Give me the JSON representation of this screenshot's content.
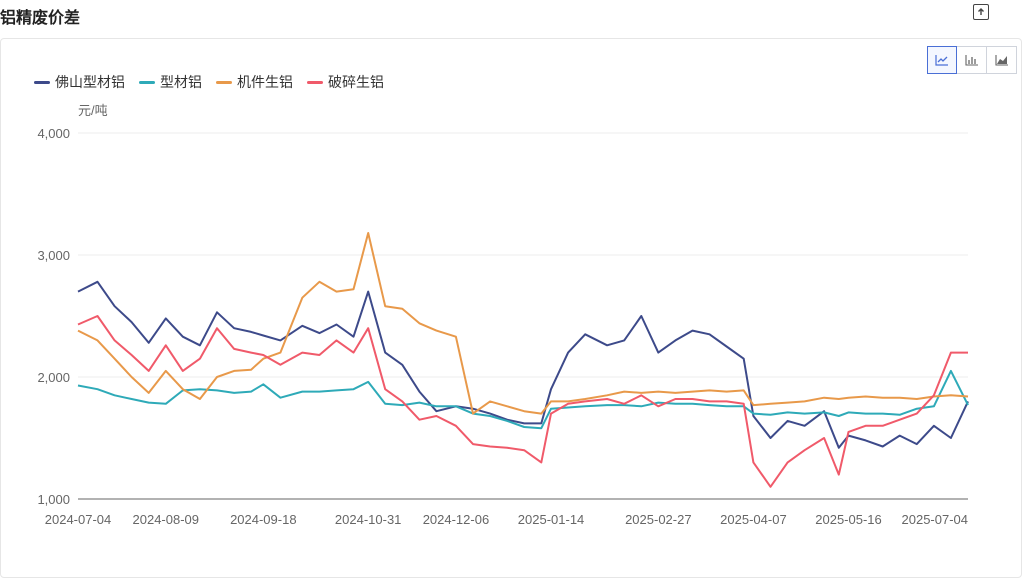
{
  "page": {
    "title": "铝精废价差",
    "export_icon": "export-icon"
  },
  "toolbar": {
    "icons": [
      "line-chart-icon",
      "bar-chart-icon",
      "area-chart-icon"
    ],
    "active": "line-chart-icon"
  },
  "chart_data": {
    "type": "line",
    "ylabel": "元/吨",
    "ylim": [
      1000,
      4000
    ],
    "yticks": [
      "1,000",
      "2,000",
      "3,000",
      "4,000"
    ],
    "yticks_values": [
      1000,
      2000,
      3000,
      4000
    ],
    "xticks": [
      "2024-07-04",
      "2024-08-09",
      "2024-09-18",
      "2024-10-31",
      "2024-12-06",
      "2025-01-14",
      "2025-02-27",
      "2025-04-07",
      "2025-05-16",
      "2025-07-04"
    ],
    "x": [
      "2024-07-04",
      "2024-07-12",
      "2024-07-19",
      "2024-07-26",
      "2024-08-02",
      "2024-08-09",
      "2024-08-16",
      "2024-08-23",
      "2024-08-30",
      "2024-09-06",
      "2024-09-13",
      "2024-09-18",
      "2024-09-25",
      "2024-10-04",
      "2024-10-11",
      "2024-10-18",
      "2024-10-25",
      "2024-10-31",
      "2024-11-07",
      "2024-11-14",
      "2024-11-21",
      "2024-11-28",
      "2024-12-06",
      "2024-12-13",
      "2024-12-20",
      "2024-12-27",
      "2025-01-03",
      "2025-01-10",
      "2025-01-14",
      "2025-01-21",
      "2025-01-28",
      "2025-02-06",
      "2025-02-13",
      "2025-02-20",
      "2025-02-27",
      "2025-03-06",
      "2025-03-13",
      "2025-03-20",
      "2025-03-27",
      "2025-04-03",
      "2025-04-07",
      "2025-04-14",
      "2025-04-21",
      "2025-04-28",
      "2025-05-06",
      "2025-05-12",
      "2025-05-16",
      "2025-05-23",
      "2025-05-30",
      "2025-06-06",
      "2025-06-13",
      "2025-06-20",
      "2025-06-27",
      "2025-07-04"
    ],
    "grid": true,
    "legend_position": "top-left",
    "series": [
      {
        "name": "佛山型材铝",
        "color": "#3d4a8a",
        "values": [
          2700,
          2780,
          2580,
          2450,
          2280,
          2480,
          2330,
          2260,
          2530,
          2400,
          2370,
          2340,
          2300,
          2420,
          2360,
          2430,
          2330,
          2700,
          2200,
          2100,
          1880,
          1720,
          1760,
          1740,
          1700,
          1650,
          1620,
          1620,
          1900,
          2200,
          2350,
          2260,
          2300,
          2500,
          2200,
          2300,
          2380,
          2350,
          2250,
          2150,
          1680,
          1500,
          1640,
          1600,
          1720,
          1420,
          1520,
          1480,
          1430,
          1520,
          1450,
          1600,
          1500,
          1800
        ]
      },
      {
        "name": "型材铝",
        "color": "#2eaab8",
        "values": [
          1930,
          1900,
          1850,
          1820,
          1790,
          1780,
          1890,
          1900,
          1890,
          1870,
          1880,
          1940,
          1830,
          1880,
          1880,
          1890,
          1900,
          1960,
          1780,
          1770,
          1790,
          1760,
          1760,
          1700,
          1680,
          1640,
          1590,
          1580,
          1740,
          1750,
          1760,
          1770,
          1770,
          1760,
          1790,
          1780,
          1780,
          1770,
          1760,
          1760,
          1700,
          1690,
          1710,
          1700,
          1710,
          1680,
          1710,
          1700,
          1700,
          1690,
          1740,
          1760,
          2050,
          1770
        ]
      },
      {
        "name": "机件生铝",
        "color": "#e8994a",
        "values": [
          2380,
          2300,
          2150,
          2000,
          1870,
          2050,
          1900,
          1820,
          2000,
          2050,
          2060,
          2150,
          2200,
          2650,
          2780,
          2700,
          2720,
          3180,
          2580,
          2560,
          2440,
          2380,
          2330,
          1700,
          1800,
          1760,
          1720,
          1700,
          1800,
          1800,
          1820,
          1850,
          1880,
          1870,
          1880,
          1870,
          1880,
          1890,
          1880,
          1890,
          1770,
          1780,
          1790,
          1800,
          1830,
          1820,
          1830,
          1840,
          1830,
          1830,
          1820,
          1840,
          1850,
          1840
        ]
      },
      {
        "name": "破碎生铝",
        "color": "#f05a6a",
        "values": [
          2430,
          2500,
          2300,
          2180,
          2050,
          2260,
          2050,
          2150,
          2400,
          2230,
          2200,
          2180,
          2100,
          2200,
          2180,
          2300,
          2200,
          2400,
          1900,
          1800,
          1650,
          1680,
          1600,
          1450,
          1430,
          1420,
          1400,
          1300,
          1700,
          1780,
          1800,
          1820,
          1780,
          1850,
          1760,
          1820,
          1820,
          1800,
          1800,
          1780,
          1300,
          1100,
          1300,
          1400,
          1500,
          1200,
          1550,
          1600,
          1600,
          1650,
          1700,
          1850,
          2200,
          2200
        ]
      }
    ]
  }
}
